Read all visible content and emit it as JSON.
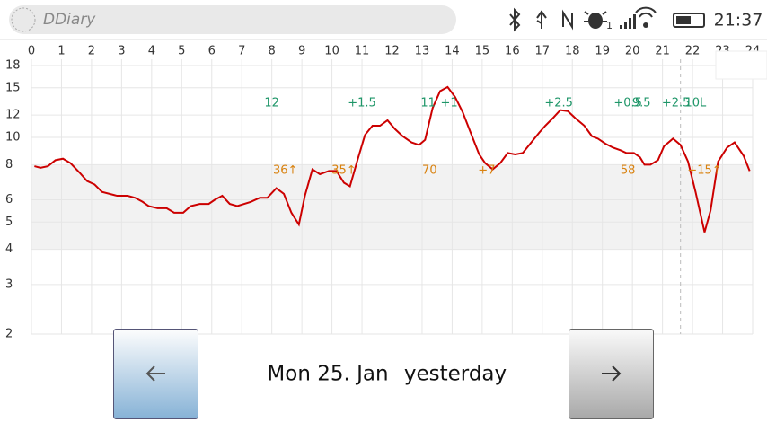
{
  "status_bar": {
    "app_name": "DDiary",
    "signal_label": "1",
    "time": "21:37"
  },
  "chart_data": {
    "type": "line",
    "x": [
      0.1,
      0.3,
      0.55,
      0.8,
      1.05,
      1.3,
      1.6,
      1.85,
      2.1,
      2.35,
      2.85,
      3.2,
      3.45,
      3.7,
      3.9,
      4.2,
      4.5,
      4.75,
      5.05,
      5.3,
      5.6,
      5.9,
      6.1,
      6.35,
      6.6,
      6.85,
      7.3,
      7.6,
      7.85,
      8.15,
      8.4,
      8.65,
      8.9,
      9.1,
      9.35,
      9.6,
      9.9,
      10.15,
      10.4,
      10.6,
      10.85,
      11.1,
      11.35,
      11.6,
      11.85,
      12.1,
      12.35,
      12.65,
      12.9,
      13.1,
      13.35,
      13.6,
      13.85,
      14.1,
      14.35,
      14.6,
      14.9,
      15.1,
      15.35,
      15.6,
      15.85,
      16.1,
      16.35,
      16.6,
      16.9,
      17.1,
      17.35,
      17.6,
      17.85,
      18.1,
      18.4,
      18.65,
      18.85,
      19.1,
      19.35,
      19.6,
      19.8,
      20.05,
      20.25,
      20.4,
      20.6,
      20.85,
      21.05,
      21.35,
      21.6,
      21.85,
      22.1,
      22.4,
      22.6,
      22.85,
      23.15,
      23.4,
      23.7,
      23.9
    ],
    "values": [
      7.9,
      7.8,
      7.9,
      8.3,
      8.4,
      8.1,
      7.5,
      7.0,
      6.8,
      6.4,
      6.2,
      6.2,
      6.1,
      5.9,
      5.7,
      5.6,
      5.6,
      5.4,
      5.4,
      5.7,
      5.8,
      5.8,
      6.0,
      6.2,
      5.8,
      5.7,
      5.9,
      6.1,
      6.1,
      6.6,
      6.3,
      5.4,
      4.9,
      6.2,
      7.7,
      7.4,
      7.6,
      7.6,
      6.9,
      6.7,
      8.3,
      10.2,
      11.0,
      11.0,
      11.5,
      10.7,
      10.1,
      9.6,
      9.4,
      9.8,
      12.7,
      14.6,
      15.1,
      13.9,
      12.3,
      10.5,
      8.7,
      8.1,
      7.7,
      8.1,
      8.8,
      8.7,
      8.8,
      9.5,
      10.4,
      11.0,
      11.7,
      12.5,
      12.4,
      11.7,
      11.0,
      10.1,
      9.9,
      9.5,
      9.2,
      9.0,
      8.8,
      8.8,
      8.5,
      8.0,
      8.0,
      8.3,
      9.3,
      9.9,
      9.4,
      8.2,
      6.4,
      4.6,
      5.5,
      8.2,
      9.2,
      9.6,
      8.6,
      7.6
    ],
    "color": "#cc0000",
    "xlim": [
      0,
      24
    ],
    "xticks": [
      0,
      1,
      2,
      3,
      4,
      5,
      6,
      7,
      8,
      9,
      10,
      11,
      12,
      13,
      14,
      15,
      16,
      17,
      18,
      19,
      20,
      21,
      22,
      23,
      24
    ],
    "ylim": [
      2,
      18
    ],
    "yticks": [
      2,
      3,
      4,
      5,
      6,
      8,
      10,
      12,
      15,
      18
    ],
    "log_scale": true,
    "grid": true,
    "target_range": [
      4,
      8
    ],
    "target_color": "#f2f2f2",
    "now_marker": 21.6,
    "insulin_color": "#1e9668",
    "insulin_labels": [
      {
        "x": 8.0,
        "text": "12"
      },
      {
        "x": 11.0,
        "text": "+1.5"
      },
      {
        "x": 13.2,
        "text": "11"
      },
      {
        "x": 13.9,
        "text": "+1"
      },
      {
        "x": 17.55,
        "text": "+2.5"
      },
      {
        "x": 19.85,
        "text": "+0.5"
      },
      {
        "x": 20.3,
        "text": "9.5"
      },
      {
        "x": 21.45,
        "text": "+2.5"
      },
      {
        "x": 22.1,
        "text": "10L"
      }
    ],
    "carb_color": "#d9820f",
    "carb_labels": [
      {
        "x": 8.45,
        "text": "36↑"
      },
      {
        "x": 10.4,
        "text": "35↑"
      },
      {
        "x": 13.25,
        "text": "70"
      },
      {
        "x": 15.15,
        "text": "+7"
      },
      {
        "x": 19.85,
        "text": "58"
      },
      {
        "x": 22.4,
        "text": "+15↑"
      }
    ]
  },
  "navigation": {
    "date": "Mon 25. Jan",
    "relative": "yesterday"
  }
}
